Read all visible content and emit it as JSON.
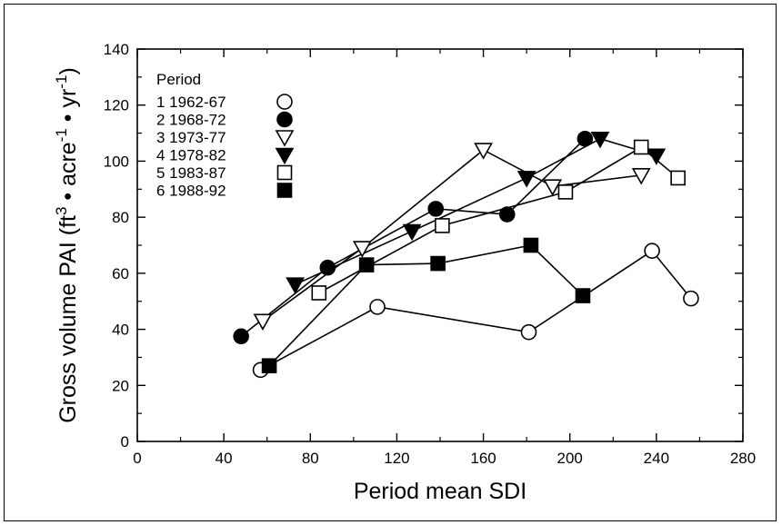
{
  "chart_data": {
    "type": "line",
    "xlabel": "Period mean SDI",
    "ylabel": "Gross volume PAI (ft³ • acre⁻¹ • yr⁻¹)",
    "ylabel_parts": {
      "main": "Gross volume PAI (ft",
      "sup1": "3",
      "mid1": " • acre",
      "sup2": "-1",
      "mid2": " • yr",
      "sup3": "-1",
      "end": ")"
    },
    "xlim": [
      0,
      280
    ],
    "ylim": [
      0,
      140
    ],
    "xticks": [
      0,
      40,
      80,
      120,
      160,
      200,
      240,
      280
    ],
    "yticks": [
      0,
      20,
      40,
      60,
      80,
      100,
      120,
      140
    ],
    "grid": false,
    "legend": {
      "title": "Period",
      "placement": "top-left"
    },
    "series": [
      {
        "name": "1 1962-67",
        "marker": "circle-open",
        "x": [
          57,
          111,
          181,
          238,
          256
        ],
        "y": [
          25.5,
          48,
          39,
          68,
          51
        ]
      },
      {
        "name": "2 1968-72",
        "marker": "circle-filled",
        "x": [
          48,
          88,
          138,
          171,
          207
        ],
        "y": [
          37.5,
          62,
          83,
          81,
          108
        ]
      },
      {
        "name": "3 1973-77",
        "marker": "triangle-down-open",
        "x": [
          58,
          104,
          160,
          192,
          233
        ],
        "y": [
          43,
          69,
          104,
          91,
          95
        ]
      },
      {
        "name": "4 1978-82",
        "marker": "triangle-down-filled",
        "x": [
          73,
          127,
          180,
          214,
          240
        ],
        "y": [
          56,
          75,
          94,
          108,
          102
        ]
      },
      {
        "name": "5 1983-87",
        "marker": "square-open",
        "x": [
          84,
          141,
          198,
          233,
          250
        ],
        "y": [
          53,
          77,
          89,
          105,
          94
        ]
      },
      {
        "name": "6 1988-92",
        "marker": "square-filled",
        "x": [
          61,
          106,
          139,
          182,
          206
        ],
        "y": [
          27,
          63,
          63.5,
          70,
          52
        ]
      }
    ]
  }
}
